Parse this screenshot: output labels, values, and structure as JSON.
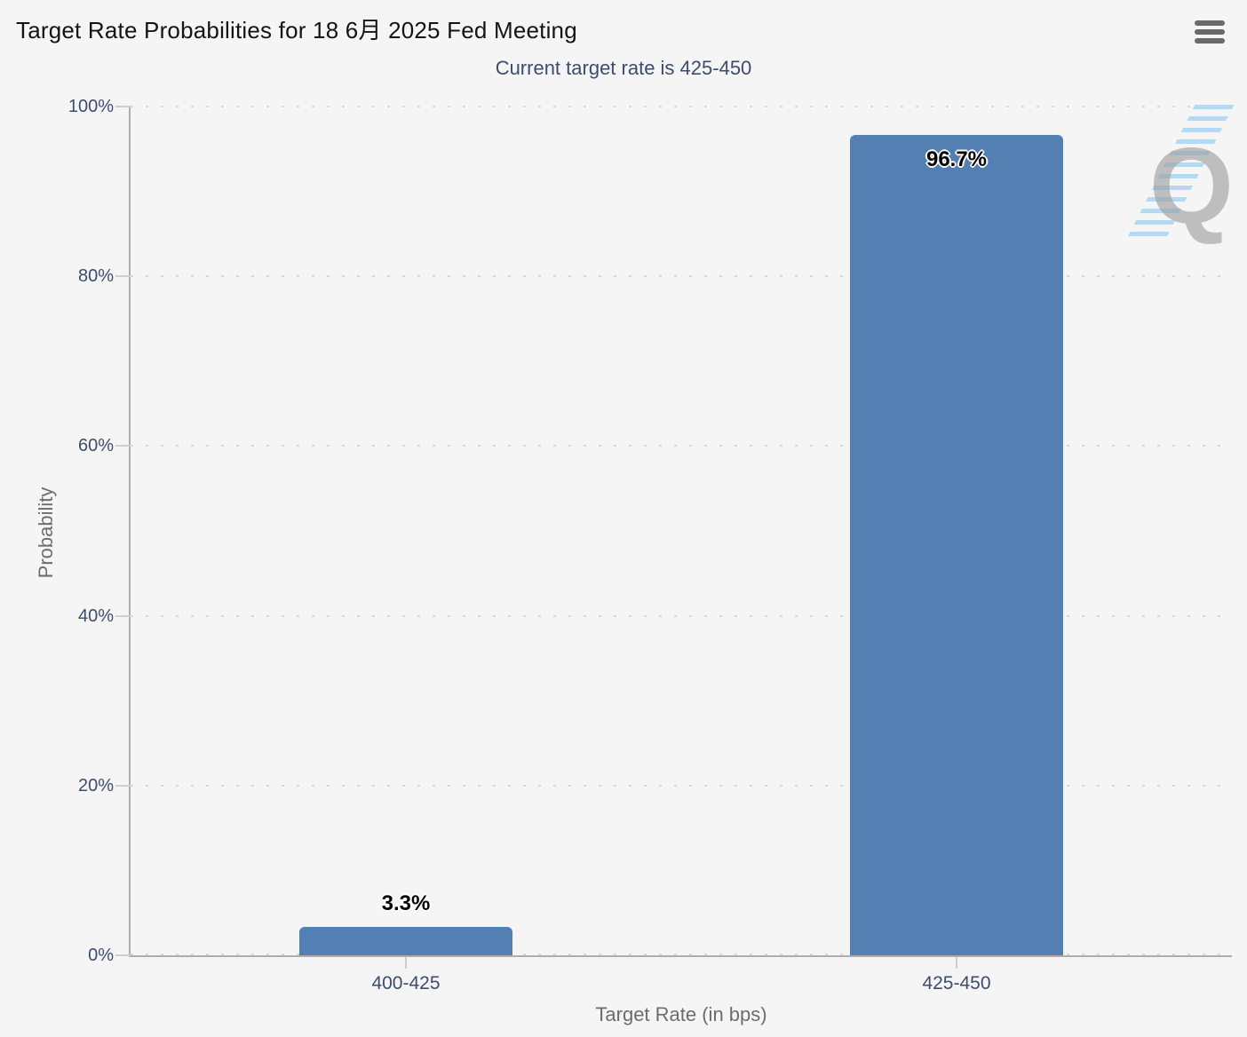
{
  "header": {
    "title": "Target Rate Probabilities for 18 6月 2025 Fed Meeting",
    "subtitle": "Current target rate is 425-450"
  },
  "menu": {
    "icon": "hamburger-menu-icon"
  },
  "watermark": {
    "letter": "Q"
  },
  "colors": {
    "background": "#f5f5f5",
    "bar": "#537fb3",
    "axis_line": "#aeaeae",
    "tick": "#cfcfcf",
    "gridline": "#d7d7d7",
    "title_text": "#141414",
    "subtitle_text": "#3d4c6f",
    "axis_label_text": "#3d4c6f",
    "axis_title_text": "#6d6d6d",
    "data_label_text": "#000000",
    "watermark_gray": "#9e9e9e",
    "watermark_blue": "#7dc3f5"
  },
  "chart_data": {
    "type": "bar",
    "title": "Target Rate Probabilities for 18 6月 2025 Fed Meeting",
    "subtitle": "Current target rate is 425-450",
    "categories": [
      "400-425",
      "425-450"
    ],
    "values": [
      3.3,
      96.7
    ],
    "value_labels": [
      "3.3%",
      "96.7%"
    ],
    "xlabel": "Target Rate (in bps)",
    "ylabel": "Probability",
    "ylim": [
      0,
      100
    ],
    "ytick_step": 20,
    "ytick_labels": [
      "0%",
      "20%",
      "40%",
      "60%",
      "80%",
      "100%"
    ],
    "grid": "horizontal-dotted",
    "legend": "none"
  }
}
